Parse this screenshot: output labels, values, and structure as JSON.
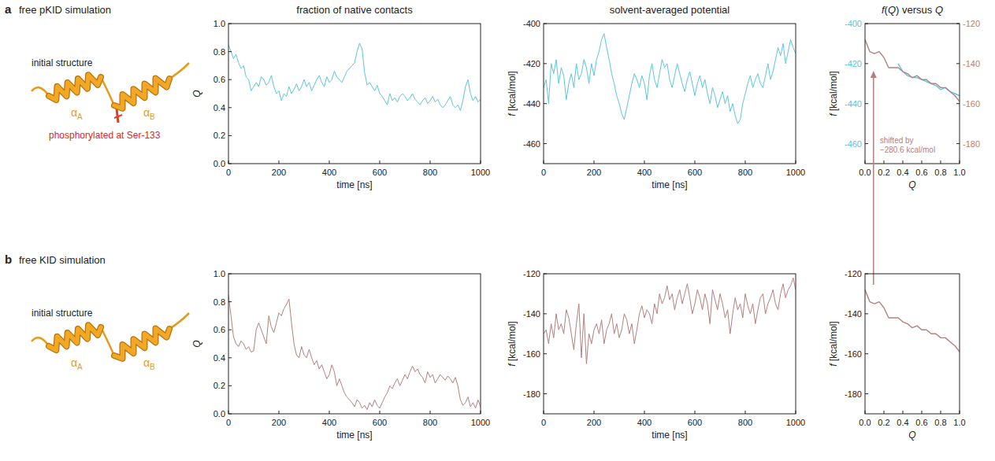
{
  "column_titles": [
    "fraction of native contacts",
    "solvent-averaged potential",
    "f(Q) versus Q"
  ],
  "rows": [
    {
      "letter": "a",
      "title": "free pKID simulation",
      "structure_label": "initial structure",
      "helix_labels": [
        {
          "base": "α",
          "sub": "A"
        },
        {
          "base": "α",
          "sub": "B"
        }
      ],
      "modification": "phosphorylated at Ser-133"
    },
    {
      "letter": "b",
      "title": "free KID simulation",
      "structure_label": "initial structure",
      "helix_labels": [
        {
          "base": "α",
          "sub": "A"
        },
        {
          "base": "α",
          "sub": "B"
        }
      ]
    }
  ],
  "chart_data": [
    {
      "type": "line",
      "xlabel": "time [ns]",
      "ylabel": "Q",
      "x": [
        0,
        10,
        20,
        30,
        40,
        50,
        60,
        70,
        80,
        90,
        100,
        110,
        120,
        130,
        140,
        150,
        160,
        170,
        180,
        190,
        200,
        210,
        220,
        230,
        240,
        250,
        260,
        270,
        280,
        290,
        300,
        310,
        320,
        330,
        340,
        350,
        360,
        370,
        380,
        390,
        400,
        410,
        420,
        430,
        440,
        450,
        460,
        470,
        480,
        490,
        500,
        510,
        520,
        530,
        540,
        550,
        560,
        570,
        580,
        590,
        600,
        610,
        620,
        630,
        640,
        650,
        660,
        670,
        680,
        690,
        700,
        710,
        720,
        730,
        740,
        750,
        760,
        770,
        780,
        790,
        800,
        810,
        820,
        830,
        840,
        850,
        860,
        870,
        880,
        890,
        900,
        910,
        920,
        930,
        940,
        950,
        960,
        970,
        980,
        990,
        1000
      ],
      "series": [
        {
          "color": "#5cc6d8",
          "values": [
            0.85,
            0.8,
            0.75,
            0.78,
            0.72,
            0.68,
            0.7,
            0.62,
            0.6,
            0.52,
            0.55,
            0.58,
            0.55,
            0.62,
            0.6,
            0.56,
            0.58,
            0.63,
            0.55,
            0.5,
            0.52,
            0.45,
            0.5,
            0.48,
            0.55,
            0.5,
            0.53,
            0.57,
            0.52,
            0.55,
            0.6,
            0.55,
            0.58,
            0.52,
            0.56,
            0.6,
            0.63,
            0.58,
            0.55,
            0.62,
            0.58,
            0.6,
            0.66,
            0.62,
            0.6,
            0.58,
            0.62,
            0.66,
            0.68,
            0.7,
            0.72,
            0.8,
            0.86,
            0.82,
            0.65,
            0.56,
            0.58,
            0.55,
            0.52,
            0.56,
            0.5,
            0.48,
            0.45,
            0.42,
            0.5,
            0.45,
            0.47,
            0.44,
            0.48,
            0.5,
            0.48,
            0.45,
            0.47,
            0.5,
            0.46,
            0.44,
            0.42,
            0.45,
            0.47,
            0.43,
            0.45,
            0.48,
            0.44,
            0.46,
            0.42,
            0.4,
            0.42,
            0.45,
            0.48,
            0.42,
            0.4,
            0.42,
            0.38,
            0.45,
            0.55,
            0.6,
            0.5,
            0.45,
            0.48,
            0.44,
            0.46
          ]
        }
      ],
      "xlim": [
        0,
        1000
      ],
      "xticks": [
        0,
        200,
        400,
        600,
        800,
        1000
      ],
      "ylim": [
        0,
        1
      ],
      "yticks": [
        {
          "value": 0,
          "label": "0.0"
        },
        0.2,
        0.4,
        0.6,
        0.8,
        {
          "value": 1,
          "label": "1.0"
        }
      ]
    },
    {
      "type": "line",
      "xlabel": "time [ns]",
      "ylabel": "f [kcal/mol]",
      "x": [
        0,
        10,
        20,
        30,
        40,
        50,
        60,
        70,
        80,
        90,
        100,
        110,
        120,
        130,
        140,
        150,
        160,
        170,
        180,
        190,
        200,
        210,
        220,
        230,
        240,
        250,
        260,
        270,
        280,
        290,
        300,
        310,
        320,
        330,
        340,
        350,
        360,
        370,
        380,
        390,
        400,
        410,
        420,
        430,
        440,
        450,
        460,
        470,
        480,
        490,
        500,
        510,
        520,
        530,
        540,
        550,
        560,
        570,
        580,
        590,
        600,
        610,
        620,
        630,
        640,
        650,
        660,
        670,
        680,
        690,
        700,
        710,
        720,
        730,
        740,
        750,
        760,
        770,
        780,
        790,
        800,
        810,
        820,
        830,
        840,
        850,
        860,
        870,
        880,
        890,
        900,
        910,
        920,
        930,
        940,
        950,
        960,
        970,
        980,
        990,
        1000
      ],
      "series": [
        {
          "color": "#5cc6d8",
          "values": [
            -432,
            -428,
            -440,
            -420,
            -425,
            -418,
            -430,
            -422,
            -426,
            -438,
            -430,
            -425,
            -432,
            -420,
            -428,
            -425,
            -418,
            -422,
            -430,
            -420,
            -426,
            -418,
            -414,
            -408,
            -405,
            -412,
            -418,
            -425,
            -430,
            -436,
            -440,
            -445,
            -448,
            -442,
            -436,
            -430,
            -425,
            -428,
            -432,
            -426,
            -430,
            -438,
            -426,
            -420,
            -428,
            -432,
            -425,
            -418,
            -422,
            -420,
            -428,
            -432,
            -426,
            -420,
            -425,
            -430,
            -434,
            -428,
            -424,
            -430,
            -436,
            -430,
            -426,
            -432,
            -428,
            -435,
            -440,
            -432,
            -436,
            -442,
            -438,
            -434,
            -440,
            -436,
            -444,
            -440,
            -446,
            -450,
            -448,
            -440,
            -435,
            -430,
            -426,
            -432,
            -428,
            -425,
            -430,
            -432,
            -426,
            -420,
            -428,
            -424,
            -418,
            -412,
            -416,
            -410,
            -420,
            -414,
            -408,
            -412,
            -415
          ]
        }
      ],
      "xlim": [
        0,
        1000
      ],
      "xticks": [
        0,
        200,
        400,
        600,
        800,
        1000
      ],
      "ylim": [
        -470,
        -400
      ],
      "yticks": [
        -460,
        -440,
        -420,
        -400
      ]
    },
    {
      "type": "line",
      "xlabel": "Q",
      "ylabel": "f [kcal/mol]",
      "x": [
        0,
        0.05,
        0.1,
        0.15,
        0.2,
        0.25,
        0.3,
        0.35,
        0.4,
        0.45,
        0.5,
        0.55,
        0.6,
        0.65,
        0.7,
        0.75,
        0.8,
        0.85,
        0.9,
        0.95,
        1
      ],
      "series": [
        {
          "color": "#5cc6d8",
          "values": [
            null,
            null,
            null,
            null,
            null,
            null,
            null,
            -420,
            -424,
            -426,
            -427,
            -427,
            -428,
            -429,
            -430,
            -431,
            -433,
            -432,
            -434,
            -435,
            -436
          ]
        },
        {
          "color": "#b3807e",
          "axis": "y2",
          "values": [
            -128,
            -134,
            -135,
            -134,
            -137,
            -142,
            -142,
            -142,
            -144,
            -145,
            -147,
            -146,
            -148,
            -148,
            -150,
            -150,
            -152,
            -152,
            -154,
            -156,
            -159
          ]
        }
      ],
      "xlim": [
        0,
        1
      ],
      "xticks": [
        {
          "value": 0,
          "label": "0.0"
        },
        0.2,
        0.4,
        0.6,
        0.8,
        {
          "value": 1,
          "label": "1.0"
        }
      ],
      "ylim": [
        -470,
        -400
      ],
      "yticks": [
        -460,
        -440,
        -420,
        -400
      ],
      "y2lim": [
        -190,
        -120
      ],
      "y2ticks": [
        -180,
        -160,
        -140,
        -120
      ],
      "annotation": [
        "shifted by",
        "−280.6 kcal/mol"
      ]
    },
    {
      "type": "line",
      "xlabel": "time [ns]",
      "ylabel": "Q",
      "x": [
        0,
        10,
        20,
        30,
        40,
        50,
        60,
        70,
        80,
        90,
        100,
        110,
        120,
        130,
        140,
        150,
        160,
        170,
        180,
        190,
        200,
        210,
        220,
        230,
        240,
        250,
        260,
        270,
        280,
        290,
        300,
        310,
        320,
        330,
        340,
        350,
        360,
        370,
        380,
        390,
        400,
        410,
        420,
        430,
        440,
        450,
        460,
        470,
        480,
        490,
        500,
        510,
        520,
        530,
        540,
        550,
        560,
        570,
        580,
        590,
        600,
        610,
        620,
        630,
        640,
        650,
        660,
        670,
        680,
        690,
        700,
        710,
        720,
        730,
        740,
        750,
        760,
        770,
        780,
        790,
        800,
        810,
        820,
        830,
        840,
        850,
        860,
        870,
        880,
        890,
        900,
        910,
        920,
        930,
        940,
        950,
        960,
        970,
        980,
        990,
        1000
      ],
      "series": [
        {
          "color": "#b3807e",
          "values": [
            0.85,
            0.7,
            0.55,
            0.5,
            0.48,
            0.52,
            0.5,
            0.46,
            0.48,
            0.44,
            0.45,
            0.6,
            0.65,
            0.6,
            0.55,
            0.5,
            0.7,
            0.62,
            0.58,
            0.65,
            0.72,
            0.7,
            0.75,
            0.78,
            0.82,
            0.65,
            0.5,
            0.42,
            0.4,
            0.48,
            0.42,
            0.4,
            0.46,
            0.4,
            0.35,
            0.38,
            0.32,
            0.35,
            0.3,
            0.25,
            0.28,
            0.35,
            0.3,
            0.2,
            0.25,
            0.2,
            0.15,
            0.12,
            0.1,
            0.08,
            0.05,
            0.1,
            0.08,
            0.04,
            0.06,
            0.03,
            0.08,
            0.05,
            0.1,
            0.06,
            0.04,
            0.08,
            0.12,
            0.15,
            0.2,
            0.18,
            0.22,
            0.25,
            0.2,
            0.24,
            0.28,
            0.25,
            0.3,
            0.34,
            0.3,
            0.32,
            0.28,
            0.26,
            0.22,
            0.3,
            0.26,
            0.28,
            0.22,
            0.25,
            0.28,
            0.26,
            0.24,
            0.27,
            0.25,
            0.22,
            0.26,
            0.2,
            0.1,
            0.06,
            0.08,
            0.12,
            0.05,
            0.08,
            0.04,
            0.1,
            0.05
          ]
        }
      ],
      "xlim": [
        0,
        1000
      ],
      "xticks": [
        0,
        200,
        400,
        600,
        800,
        1000
      ],
      "ylim": [
        0,
        1
      ],
      "yticks": [
        {
          "value": 0,
          "label": "0.0"
        },
        0.2,
        0.4,
        0.6,
        0.8,
        {
          "value": 1,
          "label": "1.0"
        }
      ]
    },
    {
      "type": "line",
      "xlabel": "time [ns]",
      "ylabel": "f [kcal/mol]",
      "x": [
        0,
        10,
        20,
        30,
        40,
        50,
        60,
        70,
        80,
        90,
        100,
        110,
        120,
        130,
        140,
        150,
        160,
        170,
        180,
        190,
        200,
        210,
        220,
        230,
        240,
        250,
        260,
        270,
        280,
        290,
        300,
        310,
        320,
        330,
        340,
        350,
        360,
        370,
        380,
        390,
        400,
        410,
        420,
        430,
        440,
        450,
        460,
        470,
        480,
        490,
        500,
        510,
        520,
        530,
        540,
        550,
        560,
        570,
        580,
        590,
        600,
        610,
        620,
        630,
        640,
        650,
        660,
        670,
        680,
        690,
        700,
        710,
        720,
        730,
        740,
        750,
        760,
        770,
        780,
        790,
        800,
        810,
        820,
        830,
        840,
        850,
        860,
        870,
        880,
        890,
        900,
        910,
        920,
        930,
        940,
        950,
        960,
        970,
        980,
        990,
        1000
      ],
      "series": [
        {
          "color": "#b3807e",
          "values": [
            -150,
            -148,
            -155,
            -145,
            -152,
            -140,
            -148,
            -145,
            -150,
            -138,
            -142,
            -150,
            -158,
            -145,
            -135,
            -162,
            -140,
            -165,
            -150,
            -155,
            -148,
            -145,
            -150,
            -143,
            -155,
            -148,
            -145,
            -140,
            -150,
            -145,
            -152,
            -148,
            -140,
            -143,
            -150,
            -145,
            -155,
            -148,
            -140,
            -136,
            -142,
            -138,
            -140,
            -145,
            -135,
            -140,
            -130,
            -135,
            -132,
            -126,
            -133,
            -130,
            -138,
            -132,
            -128,
            -135,
            -130,
            -125,
            -132,
            -140,
            -135,
            -128,
            -132,
            -138,
            -130,
            -135,
            -145,
            -128,
            -133,
            -138,
            -130,
            -135,
            -142,
            -138,
            -150,
            -140,
            -132,
            -138,
            -135,
            -142,
            -130,
            -136,
            -140,
            -135,
            -145,
            -138,
            -132,
            -130,
            -140,
            -135,
            -132,
            -128,
            -135,
            -138,
            -130,
            -125,
            -132,
            -128,
            -126,
            -122,
            -128
          ]
        }
      ],
      "xlim": [
        0,
        1000
      ],
      "xticks": [
        0,
        200,
        400,
        600,
        800,
        1000
      ],
      "ylim": [
        -190,
        -120
      ],
      "yticks": [
        -180,
        -160,
        -140,
        -120
      ]
    },
    {
      "type": "line",
      "xlabel": "Q",
      "ylabel": "f [kcal/mol]",
      "x": [
        0,
        0.05,
        0.1,
        0.15,
        0.2,
        0.25,
        0.3,
        0.35,
        0.4,
        0.45,
        0.5,
        0.55,
        0.6,
        0.65,
        0.7,
        0.75,
        0.8,
        0.85,
        0.9,
        0.95,
        1
      ],
      "series": [
        {
          "color": "#b3807e",
          "values": [
            -128,
            -134,
            -135,
            -134,
            -137,
            -142,
            -142,
            -142,
            -144,
            -145,
            -147,
            -146,
            -148,
            -148,
            -150,
            -150,
            -152,
            -152,
            -154,
            -156,
            -159
          ]
        }
      ],
      "xlim": [
        0,
        1
      ],
      "xticks": [
        {
          "value": 0,
          "label": "0.0"
        },
        0.2,
        0.4,
        0.6,
        0.8,
        {
          "value": 1,
          "label": "1.0"
        }
      ],
      "ylim": [
        -190,
        -120
      ],
      "yticks": [
        -180,
        -160,
        -140,
        -120
      ]
    }
  ]
}
